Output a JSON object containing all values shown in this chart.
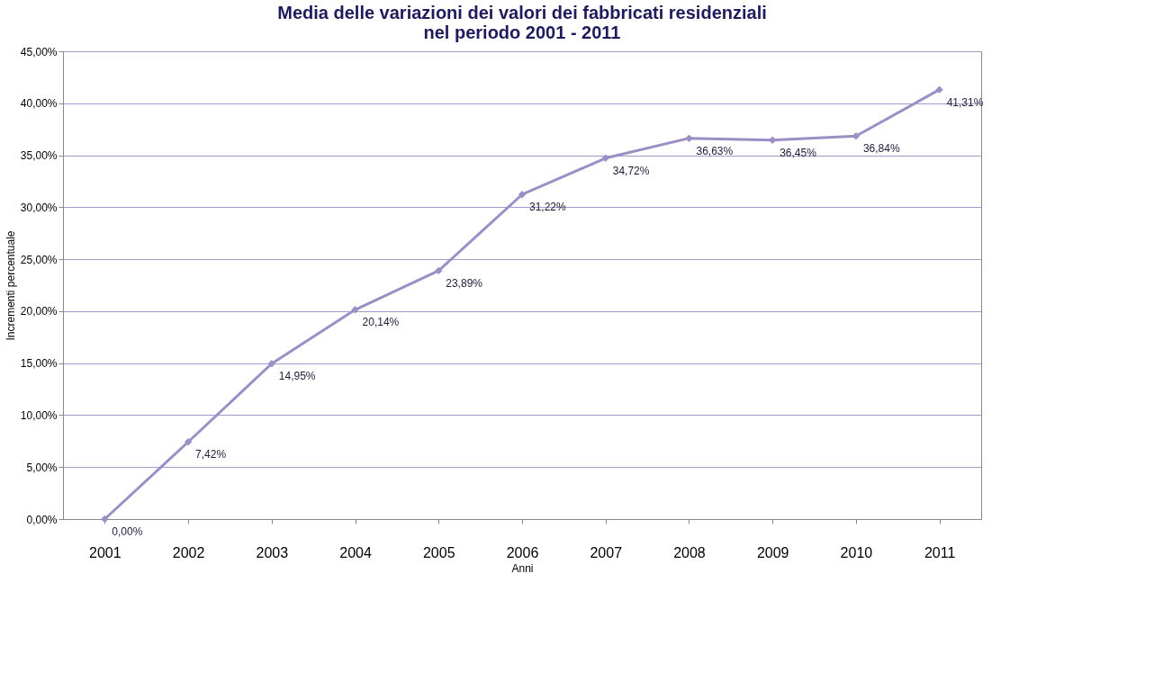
{
  "chart_data": {
    "type": "line",
    "title": [
      "Media delle variazioni dei valori dei fabbricati residenziali",
      "nel periodo 2001 - 2011"
    ],
    "xlabel": "Anni",
    "ylabel": "Incrementi percentuale",
    "categories": [
      "2001",
      "2002",
      "2003",
      "2004",
      "2005",
      "2006",
      "2007",
      "2008",
      "2009",
      "2010",
      "2011"
    ],
    "series": [
      {
        "color": "#9b8fc6",
        "values": [
          0,
          7.42,
          14.95,
          20.14,
          23.89,
          31.22,
          34.72,
          36.63,
          36.45,
          36.84,
          41.31
        ],
        "value_labels": [
          "0,00%",
          "7,42%",
          "14,95%",
          "20,14%",
          "23,89%",
          "31,22%",
          "34,72%",
          "36,63%",
          "36,45%",
          "36,84%",
          "41,31%"
        ]
      }
    ],
    "ylim": [
      0,
      45
    ],
    "yticks": [
      {
        "value": 0,
        "label": "0,00%"
      },
      {
        "value": 5,
        "label": "5,00%"
      },
      {
        "value": 10,
        "label": "10,00%"
      },
      {
        "value": 15,
        "label": "15,00%"
      },
      {
        "value": 20,
        "label": "20,00%"
      },
      {
        "value": 25,
        "label": "25,00%"
      },
      {
        "value": 30,
        "label": "30,00%"
      },
      {
        "value": 35,
        "label": "35,00%"
      },
      {
        "value": 40,
        "label": "40,00%"
      },
      {
        "value": 45,
        "label": "45,00%"
      }
    ],
    "grid": "y",
    "marker": "diamond",
    "line_style": "solid"
  }
}
